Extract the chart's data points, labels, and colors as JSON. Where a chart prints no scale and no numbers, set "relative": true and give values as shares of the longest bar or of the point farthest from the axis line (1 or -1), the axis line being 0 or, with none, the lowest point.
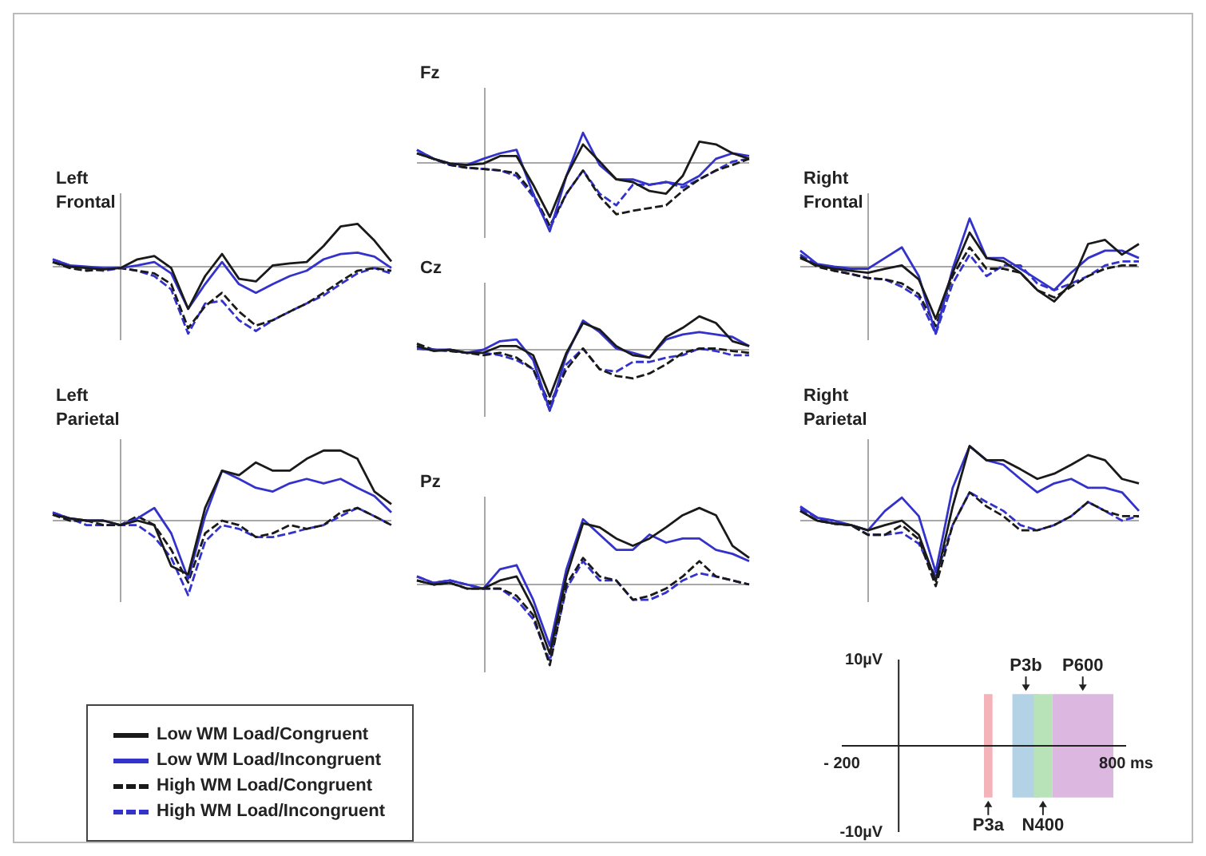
{
  "chart_data": [
    {
      "type": "line",
      "title": "Fz",
      "relative": true,
      "categories": [
        null,
        null,
        null,
        null,
        null,
        null,
        null,
        null,
        null,
        null,
        null,
        null,
        null,
        null,
        null,
        null,
        null,
        null,
        null,
        null,
        null
      ],
      "series": [
        {
          "color": "#1a1a1a",
          "values": [
            0.14,
            0.06,
            -0.01,
            -0.03,
            -0.01,
            0.1,
            0.1,
            -0.32,
            -0.79,
            -0.19,
            0.27,
            0.02,
            -0.24,
            -0.28,
            -0.41,
            -0.45,
            -0.19,
            0.31,
            0.27,
            0.14,
            0.06
          ]
        },
        {
          "color": "#3333cc",
          "values": [
            0.19,
            0.06,
            -0.01,
            -0.03,
            0.06,
            0.14,
            0.19,
            -0.45,
            -1,
            -0.19,
            0.44,
            -0.03,
            -0.24,
            -0.24,
            -0.32,
            -0.28,
            -0.32,
            -0.19,
            0.06,
            0.14,
            0.1
          ]
        },
        {
          "color": "#1a1a1a",
          "line_style": "dashed",
          "values": [
            0.14,
            0.06,
            -0.03,
            -0.07,
            -0.09,
            -0.11,
            -0.15,
            -0.45,
            -0.92,
            -0.45,
            -0.11,
            -0.49,
            -0.75,
            -0.7,
            -0.66,
            -0.62,
            -0.41,
            -0.24,
            -0.11,
            -0.03,
            0.06
          ]
        },
        {
          "color": "#3333cc",
          "line_style": "dashed",
          "values": [
            0.19,
            0.06,
            -0.03,
            -0.07,
            -0.09,
            -0.11,
            -0.19,
            -0.49,
            -0.96,
            -0.45,
            -0.11,
            -0.45,
            -0.62,
            -0.32,
            -0.32,
            -0.28,
            -0.36,
            -0.24,
            -0.11,
            0.02,
            0.06
          ]
        }
      ]
    },
    {
      "type": "line",
      "title": "Left Frontal",
      "relative": true,
      "categories": [
        null,
        null,
        null,
        null,
        null,
        null,
        null,
        null,
        null,
        null,
        null,
        null,
        null,
        null,
        null,
        null,
        null,
        null,
        null,
        null,
        null
      ],
      "series": [
        {
          "color": "#1a1a1a",
          "values": [
            0.07,
            0,
            -0.02,
            -0.04,
            -0.02,
            0.11,
            0.16,
            -0.02,
            -0.63,
            -0.14,
            0.19,
            -0.18,
            -0.22,
            0.02,
            0.05,
            0.07,
            0.31,
            0.6,
            0.64,
            0.39,
            0.08
          ]
        },
        {
          "color": "#3333cc",
          "values": [
            0.11,
            0.02,
            0,
            -0.02,
            -0.02,
            0.02,
            0.07,
            -0.1,
            -0.63,
            -0.26,
            0.07,
            -0.26,
            -0.39,
            -0.26,
            -0.14,
            -0.06,
            0.11,
            0.19,
            0.21,
            0.15,
            -0.02
          ]
        },
        {
          "color": "#1a1a1a",
          "line_style": "dashed",
          "values": [
            0.07,
            -0.02,
            -0.06,
            -0.04,
            -0.02,
            -0.06,
            -0.1,
            -0.26,
            -0.92,
            -0.59,
            -0.39,
            -0.67,
            -0.88,
            -0.8,
            -0.67,
            -0.55,
            -0.39,
            -0.22,
            -0.06,
            -0.02,
            -0.06
          ]
        },
        {
          "color": "#3333cc",
          "line_style": "dashed",
          "values": [
            0.11,
            0.02,
            -0.03,
            -0.06,
            -0.02,
            -0.06,
            -0.14,
            -0.34,
            -1,
            -0.55,
            -0.51,
            -0.8,
            -0.96,
            -0.8,
            -0.67,
            -0.55,
            -0.43,
            -0.26,
            -0.1,
            -0.02,
            -0.1
          ]
        }
      ]
    },
    {
      "type": "line",
      "title": "Right Frontal",
      "relative": true,
      "categories": [
        null,
        null,
        null,
        null,
        null,
        null,
        null,
        null,
        null,
        null,
        null,
        null,
        null,
        null,
        null,
        null,
        null,
        null,
        null,
        null,
        null
      ],
      "series": [
        {
          "color": "#1a1a1a",
          "values": [
            0.13,
            0.02,
            -0.03,
            -0.06,
            -0.09,
            -0.03,
            0.02,
            -0.19,
            -0.78,
            -0.09,
            0.51,
            0.13,
            0.08,
            -0.09,
            -0.35,
            -0.52,
            -0.25,
            0.34,
            0.4,
            0.18,
            0.34
          ]
        },
        {
          "color": "#3333cc",
          "values": [
            0.24,
            0.04,
            0,
            -0.03,
            -0.03,
            0.13,
            0.29,
            -0.14,
            -1,
            -0.03,
            0.72,
            0.13,
            0.13,
            -0.03,
            -0.19,
            -0.35,
            -0.09,
            0.13,
            0.24,
            0.24,
            0.13
          ]
        },
        {
          "color": "#1a1a1a",
          "line_style": "dashed",
          "values": [
            0.15,
            0,
            -0.06,
            -0.11,
            -0.17,
            -0.19,
            -0.25,
            -0.41,
            -0.89,
            -0.14,
            0.29,
            -0.03,
            -0.03,
            -0.09,
            -0.35,
            -0.46,
            -0.3,
            -0.14,
            -0.03,
            0.02,
            0.02
          ]
        },
        {
          "color": "#3333cc",
          "line_style": "dashed",
          "values": [
            0.18,
            0.02,
            -0.06,
            -0.11,
            -0.17,
            -0.19,
            -0.3,
            -0.46,
            -1,
            -0.25,
            0.18,
            -0.14,
            0.02,
            0.02,
            -0.25,
            -0.35,
            -0.25,
            -0.14,
            0.02,
            0.08,
            0.08
          ]
        }
      ]
    },
    {
      "type": "line",
      "title": "Cz",
      "relative": true,
      "categories": [
        null,
        null,
        null,
        null,
        null,
        null,
        null,
        null,
        null,
        null,
        null,
        null,
        null,
        null,
        null,
        null,
        null,
        null,
        null,
        null,
        null
      ],
      "series": [
        {
          "color": "#1a1a1a",
          "values": [
            0.06,
            -0.02,
            0,
            -0.05,
            -0.05,
            0.06,
            0.06,
            -0.09,
            -0.77,
            -0.05,
            0.44,
            0.33,
            0.06,
            -0.09,
            -0.13,
            0.21,
            0.36,
            0.55,
            0.44,
            0.14,
            0.06
          ]
        },
        {
          "color": "#3333cc",
          "values": [
            0.02,
            0,
            0,
            -0.05,
            0,
            0.14,
            0.17,
            -0.17,
            -1,
            -0.09,
            0.48,
            0.29,
            0.02,
            -0.05,
            -0.13,
            0.17,
            0.25,
            0.29,
            0.25,
            0.21,
            0.06
          ]
        },
        {
          "color": "#1a1a1a",
          "line_style": "dashed",
          "values": [
            0.1,
            0,
            -0.02,
            -0.05,
            -0.09,
            -0.05,
            -0.13,
            -0.32,
            -0.89,
            -0.32,
            0.02,
            -0.32,
            -0.43,
            -0.47,
            -0.39,
            -0.24,
            -0.05,
            0.02,
            0.02,
            -0.02,
            -0.05
          ]
        },
        {
          "color": "#3333cc",
          "line_style": "dashed",
          "values": [
            0.02,
            0,
            -0.02,
            -0.05,
            -0.05,
            -0.09,
            -0.17,
            -0.32,
            -1,
            -0.24,
            0.02,
            -0.32,
            -0.36,
            -0.2,
            -0.2,
            -0.13,
            -0.09,
            0.02,
            -0.02,
            -0.09,
            -0.09
          ]
        }
      ]
    },
    {
      "type": "line",
      "title": "Left Parietal",
      "relative": true,
      "legend": "bottom",
      "categories": [
        null,
        null,
        null,
        null,
        null,
        null,
        null,
        null,
        null,
        null,
        null,
        null,
        null,
        null,
        null,
        null,
        null,
        null,
        null,
        null,
        null
      ],
      "series": [
        {
          "name": "Low WM Load/Congruent",
          "color": "#1a1a1a",
          "values": [
            0.08,
            0.03,
            0,
            0,
            -0.06,
            0,
            -0.06,
            -0.61,
            -0.72,
            0.17,
            0.67,
            0.61,
            0.78,
            0.67,
            0.67,
            0.83,
            0.94,
            0.94,
            0.83,
            0.39,
            0.22
          ]
        },
        {
          "name": "Low WM Load/Incongruent",
          "color": "#3333cc",
          "values": [
            0.11,
            0.03,
            0,
            0,
            -0.06,
            0.03,
            0.17,
            -0.17,
            -0.78,
            0.06,
            0.67,
            0.56,
            0.44,
            0.39,
            0.5,
            0.56,
            0.5,
            0.56,
            0.44,
            0.33,
            0.11
          ]
        },
        {
          "name": "High WM Load/Congruent",
          "color": "#1a1a1a",
          "line_style": "dashed",
          "values": [
            0.08,
            0,
            0,
            -0.06,
            -0.06,
            0.06,
            -0.06,
            -0.39,
            -0.83,
            -0.17,
            0,
            -0.06,
            -0.22,
            -0.17,
            -0.06,
            -0.11,
            -0.06,
            0.11,
            0.17,
            0.06,
            -0.06
          ]
        },
        {
          "name": "High WM Load/Incongruent",
          "color": "#3333cc",
          "line_style": "dashed",
          "values": [
            0.11,
            0.03,
            -0.06,
            -0.06,
            -0.06,
            -0.06,
            -0.22,
            -0.5,
            -1,
            -0.28,
            -0.06,
            -0.11,
            -0.22,
            -0.22,
            -0.17,
            -0.11,
            -0.06,
            0.06,
            0.17,
            0.06,
            -0.06
          ]
        }
      ]
    },
    {
      "type": "line",
      "title": "Right Parietal",
      "relative": true,
      "categories": [
        null,
        null,
        null,
        null,
        null,
        null,
        null,
        null,
        null,
        null,
        null,
        null,
        null,
        null,
        null,
        null,
        null,
        null,
        null,
        null,
        null
      ],
      "series": [
        {
          "color": "#1a1a1a",
          "values": [
            0.13,
            0,
            -0.04,
            -0.06,
            -0.13,
            -0.06,
            0,
            -0.19,
            -0.81,
            0.19,
            1,
            0.81,
            0.81,
            0.69,
            0.56,
            0.63,
            0.75,
            0.88,
            0.81,
            0.56,
            0.5
          ]
        },
        {
          "color": "#3333cc",
          "values": [
            0.19,
            0.04,
            0,
            -0.06,
            -0.13,
            0.13,
            0.31,
            0.06,
            -0.69,
            0.44,
            1,
            0.81,
            0.75,
            0.56,
            0.38,
            0.5,
            0.56,
            0.44,
            0.44,
            0.38,
            0.13
          ]
        },
        {
          "color": "#1a1a1a",
          "line_style": "dashed",
          "values": [
            0.13,
            0,
            -0.04,
            -0.06,
            -0.19,
            -0.19,
            -0.06,
            -0.25,
            -0.88,
            -0.06,
            0.38,
            0.19,
            0.06,
            -0.13,
            -0.13,
            -0.06,
            0.06,
            0.25,
            0.13,
            0.06,
            0.06
          ]
        },
        {
          "color": "#3333cc",
          "line_style": "dashed",
          "values": [
            0.16,
            0.04,
            -0.04,
            -0.06,
            -0.19,
            -0.19,
            -0.16,
            -0.31,
            -0.75,
            -0.06,
            0.38,
            0.25,
            0.13,
            -0.06,
            -0.13,
            -0.06,
            0.06,
            0.25,
            0.13,
            0,
            0.06
          ]
        }
      ]
    },
    {
      "type": "line",
      "title": "Pz",
      "relative": true,
      "categories": [
        null,
        null,
        null,
        null,
        null,
        null,
        null,
        null,
        null,
        null,
        null,
        null,
        null,
        null,
        null,
        null,
        null,
        null,
        null,
        null,
        null
      ],
      "series": [
        {
          "color": "#1a1a1a",
          "values": [
            0.05,
            0,
            0.02,
            -0.05,
            -0.05,
            0.05,
            0.1,
            -0.29,
            -0.86,
            0.1,
            0.76,
            0.71,
            0.57,
            0.48,
            0.57,
            0.71,
            0.86,
            0.95,
            0.86,
            0.48,
            0.33
          ]
        },
        {
          "color": "#3333cc",
          "values": [
            0.1,
            0.02,
            0.05,
            0,
            -0.05,
            0.19,
            0.24,
            -0.19,
            -0.76,
            0.19,
            0.81,
            0.62,
            0.43,
            0.43,
            0.62,
            0.52,
            0.57,
            0.57,
            0.43,
            0.38,
            0.29
          ]
        },
        {
          "color": "#1a1a1a",
          "line_style": "dashed",
          "values": [
            0.05,
            0,
            0.02,
            -0.05,
            -0.05,
            -0.05,
            -0.14,
            -0.38,
            -1,
            0,
            0.33,
            0.1,
            0.05,
            -0.19,
            -0.14,
            -0.05,
            0.1,
            0.29,
            0.1,
            0.05,
            0
          ]
        },
        {
          "color": "#3333cc",
          "line_style": "dashed",
          "values": [
            0.1,
            0.02,
            0.05,
            0,
            -0.05,
            -0.05,
            -0.19,
            -0.43,
            -0.95,
            -0.05,
            0.29,
            0.05,
            0.05,
            -0.19,
            -0.19,
            -0.1,
            0.05,
            0.14,
            0.1,
            0.05,
            0
          ]
        }
      ]
    },
    {
      "type": "line",
      "xlim": [
        -200,
        800
      ],
      "ylim": [
        -10,
        10
      ],
      "xticks": [
        {
          "value": -200,
          "label": "- 200"
        },
        {
          "value": 800,
          "label": "800 ms"
        }
      ],
      "yticks": [
        {
          "value": 10,
          "label": "10µV"
        },
        {
          "value": -10,
          "label": "-10µV"
        }
      ],
      "bands": [
        {
          "axis": "x",
          "from": 300,
          "to": 330,
          "label": "P3a",
          "color": "#f4b3b8"
        },
        {
          "axis": "x",
          "from": 400,
          "to": 495,
          "label": "P3b",
          "color": "#b3d2e6"
        },
        {
          "axis": "x",
          "from": 475,
          "to": 540,
          "label": "N400",
          "color": "#b8e3b8"
        },
        {
          "axis": "x",
          "from": 540,
          "to": 755,
          "label": "P600",
          "color": "#dcb8e0"
        }
      ]
    }
  ]
}
